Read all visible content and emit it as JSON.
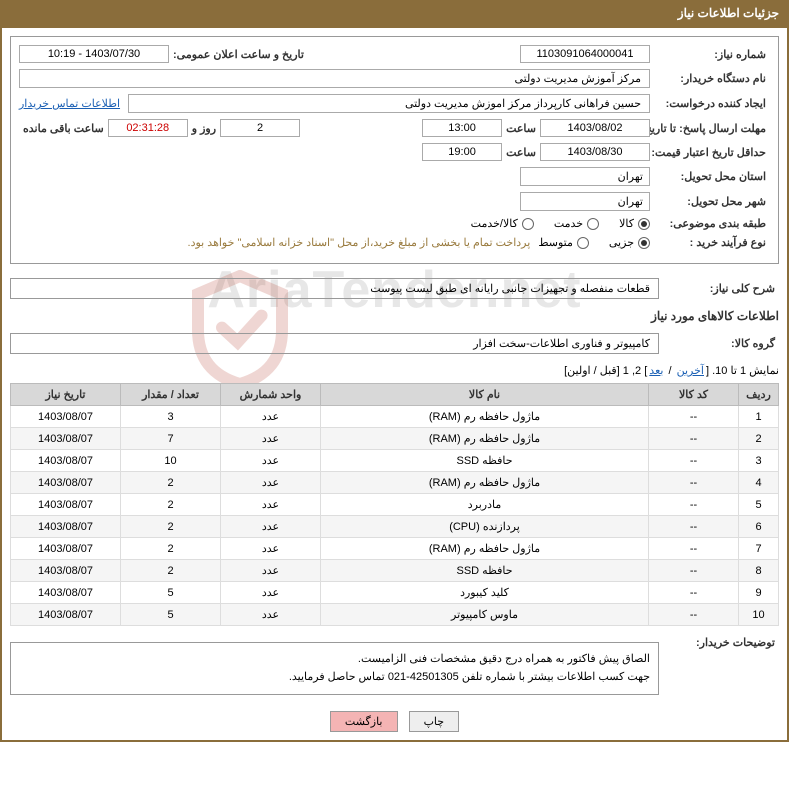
{
  "header": {
    "title": "جزئیات اطلاعات نیاز"
  },
  "fields": {
    "need_no_label": "شماره نیاز:",
    "need_no": "1103091064000041",
    "announce_label": "تاریخ و ساعت اعلان عمومی:",
    "announce_value": "1403/07/30 - 10:19",
    "buyer_label": "نام دستگاه خریدار:",
    "buyer_value": "مرکز آموزش مدیریت دولتی",
    "creator_label": "ایجاد کننده درخواست:",
    "creator_value": "حسین  فراهانی کارپرداز مرکز اموزش مدیریت دولتی",
    "contact_link": "اطلاعات تماس خریدار",
    "deadline_label": "مهلت ارسال پاسخ: تا تاریخ:",
    "deadline_date": "1403/08/02",
    "time_label": "ساعت",
    "deadline_time": "13:00",
    "days_value": "2",
    "days_and": "روز و",
    "remain_time": "02:31:28",
    "remain_label": "ساعت باقی مانده",
    "validity_label": "حداقل تاریخ اعتبار قیمت: تا تاریخ:",
    "validity_date": "1403/08/30",
    "validity_time": "19:00",
    "province_label": "استان محل تحویل:",
    "province_value": "تهران",
    "city_label": "شهر محل تحویل:",
    "city_value": "تهران",
    "class_label": "طبقه بندی موضوعی:",
    "radio_goods": "کالا",
    "radio_service": "خدمت",
    "radio_both": "کالا/خدمت",
    "purchase_type_label": "نوع فرآیند خرید :",
    "radio_partial": "جزیی",
    "radio_medium": "متوسط",
    "purchase_note": "پرداخت تمام یا بخشی از مبلغ خرید،از محل \"اسناد خزانه اسلامی\" خواهد بود.",
    "summary_label": "شرح کلی نیاز:",
    "summary_value": "قطعات منفصله و تجهیزات جانبی رایانه ای طبق لیست پیوست",
    "goods_info_title": "اطلاعات کالاهای مورد نیاز",
    "goods_group_label": "گروه کالا:",
    "goods_group_value": "کامپیوتر و فناوری اطلاعات-سخت افزار",
    "buyer_desc_label": "توضیحات خریدار:",
    "buyer_desc_l1": "الصاق پیش فاکتور به همراه درج دقیق مشخصات فنی الزامیست.",
    "buyer_desc_l2": "جهت کسب اطلاعات بیشتر با شماره تلفن 42501305-021 تماس حاصل فرمایید."
  },
  "pager": {
    "prefix": "نمایش 1 تا 10. [",
    "last": "آخرین",
    "sep1": " / ",
    "next": "بعد",
    "mid": "] 2, 1 [",
    "prev": "قبل",
    "sep2": " / ",
    "first": "اولین",
    "suffix": "]"
  },
  "table": {
    "columns": [
      "ردیف",
      "کد کالا",
      "نام کالا",
      "واحد شمارش",
      "تعداد / مقدار",
      "تاریخ نیاز"
    ],
    "col_widths": [
      "40px",
      "90px",
      "auto",
      "100px",
      "100px",
      "110px"
    ],
    "rows": [
      [
        "1",
        "--",
        "ماژول حافظه رم (RAM)",
        "عدد",
        "3",
        "1403/08/07"
      ],
      [
        "2",
        "--",
        "ماژول حافظه رم (RAM)",
        "عدد",
        "7",
        "1403/08/07"
      ],
      [
        "3",
        "--",
        "حافظه SSD",
        "عدد",
        "10",
        "1403/08/07"
      ],
      [
        "4",
        "--",
        "ماژول حافظه رم (RAM)",
        "عدد",
        "2",
        "1403/08/07"
      ],
      [
        "5",
        "--",
        "مادربرد",
        "عدد",
        "2",
        "1403/08/07"
      ],
      [
        "6",
        "--",
        "پردازنده (CPU)",
        "عدد",
        "2",
        "1403/08/07"
      ],
      [
        "7",
        "--",
        "ماژول حافظه رم (RAM)",
        "عدد",
        "2",
        "1403/08/07"
      ],
      [
        "8",
        "--",
        "حافظه SSD",
        "عدد",
        "2",
        "1403/08/07"
      ],
      [
        "9",
        "--",
        "کلید کیبورد",
        "عدد",
        "5",
        "1403/08/07"
      ],
      [
        "10",
        "--",
        "ماوس کامپیوتر",
        "عدد",
        "5",
        "1403/08/07"
      ]
    ]
  },
  "buttons": {
    "print": "چاپ",
    "back": "بازگشت"
  },
  "watermark_text": "AriaTender.net",
  "colors": {
    "header_bg": "#8a6d3b",
    "link": "#1a5fb4",
    "btn_back_bg": "#f4b4b4",
    "th_bg": "#d8d8d8"
  }
}
